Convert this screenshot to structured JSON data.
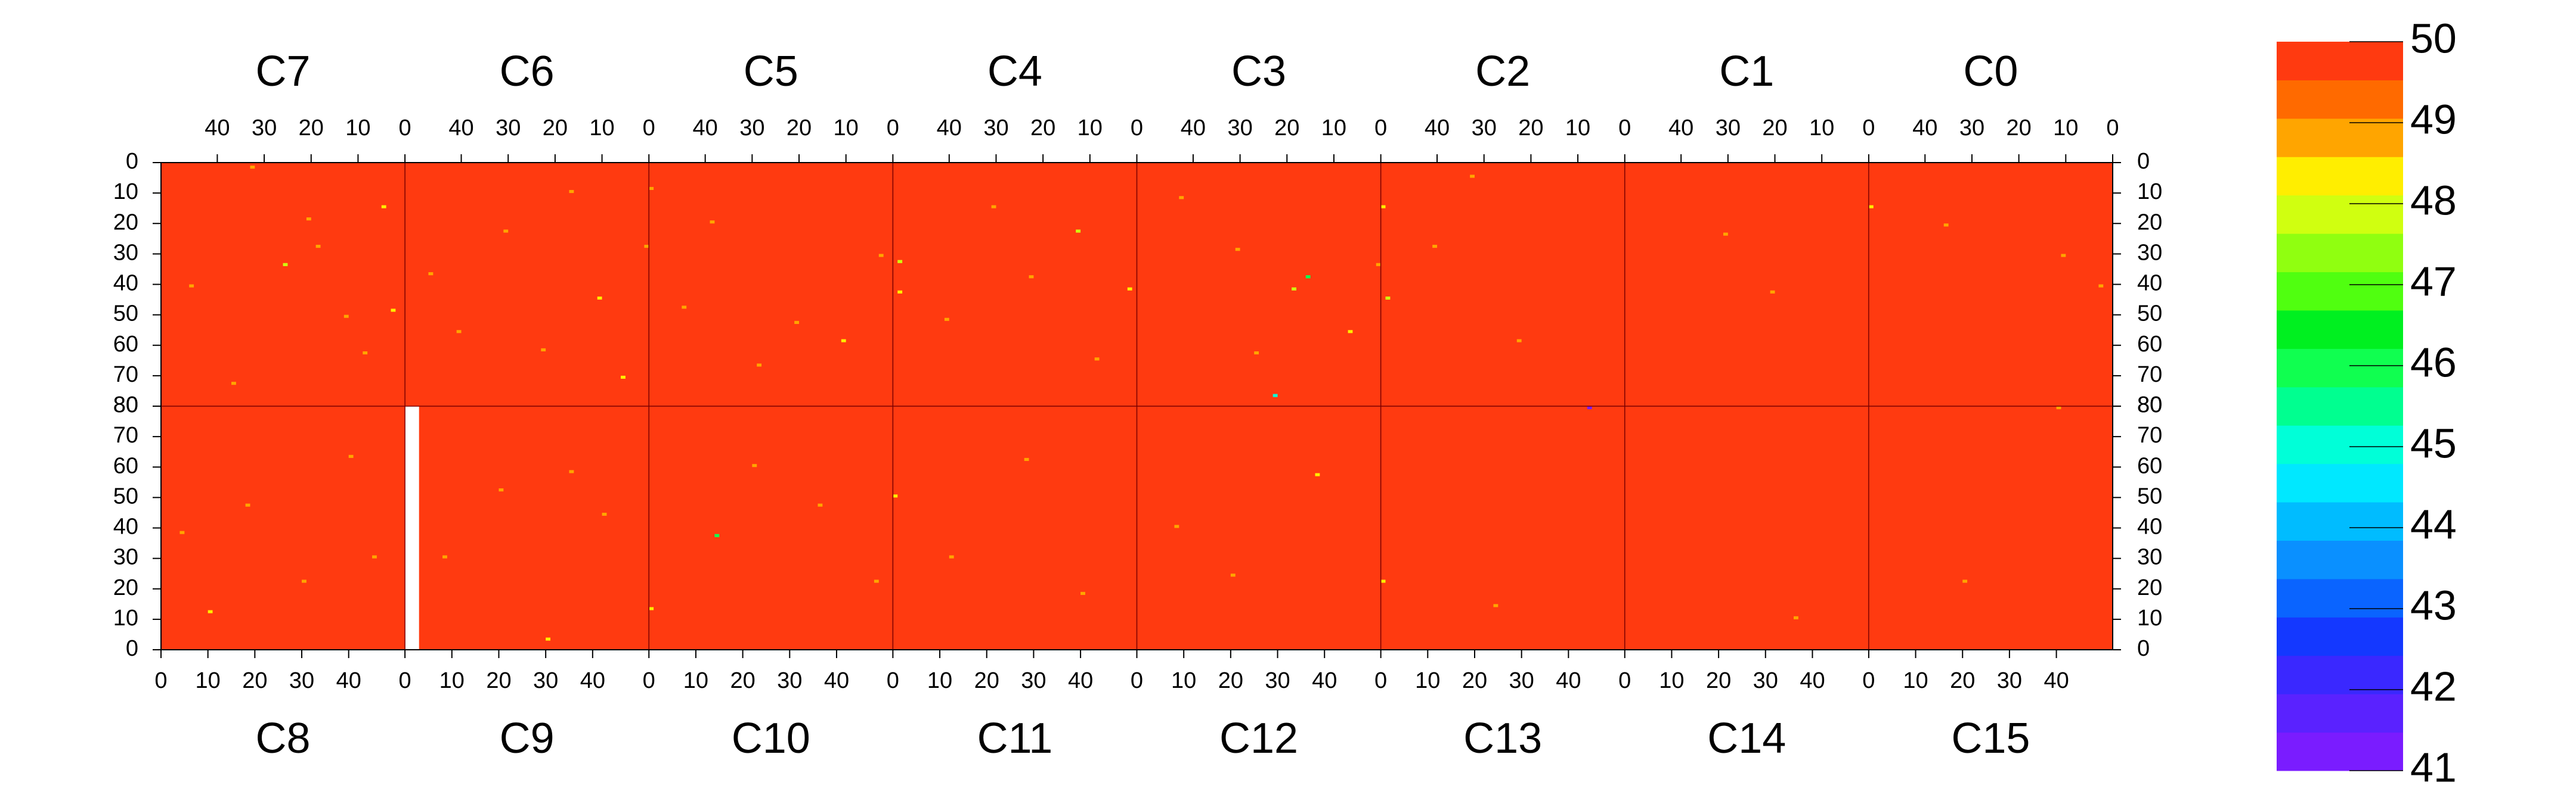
{
  "chart_data": {
    "type": "heatmap",
    "top_chips": [
      "C7",
      "C6",
      "C5",
      "C4",
      "C3",
      "C2",
      "C1",
      "C0"
    ],
    "bottom_chips": [
      "C8",
      "C9",
      "C10",
      "C11",
      "C12",
      "C13",
      "C14",
      "C15"
    ],
    "xlim": [
      0,
      52
    ],
    "xticks": [
      0,
      10,
      20,
      30,
      40
    ],
    "ylim": [
      0,
      80
    ],
    "yticks": [
      0,
      10,
      20,
      30,
      40,
      50,
      60,
      70,
      80
    ],
    "zlim": [
      41,
      50
    ],
    "zticks": [
      41,
      42,
      43,
      44,
      45,
      46,
      47,
      48,
      49,
      50
    ],
    "colors": [
      "#7a1cff",
      "#5a22ff",
      "#3a28ff",
      "#1438ff",
      "#0a64ff",
      "#0a90ff",
      "#00bcff",
      "#00e8ff",
      "#00ffd8",
      "#00ff90",
      "#10ff50",
      "#00f020",
      "#50ff10",
      "#90ff10",
      "#d0ff10",
      "#ffee00",
      "#ffa500",
      "#ff6a00",
      "#ff3a10"
    ],
    "background_value": 50,
    "masked": [
      {
        "chip": "C9",
        "cols": [
          0,
          2
        ],
        "rows": [
          0,
          80
        ]
      }
    ],
    "cells": [
      [
        "C7",
        32,
        1,
        49
      ],
      [
        "C7",
        20,
        18,
        49
      ],
      [
        "C7",
        4,
        14,
        48.5
      ],
      [
        "C7",
        12,
        50,
        49
      ],
      [
        "C7",
        45,
        40,
        49
      ],
      [
        "C7",
        25,
        33,
        48
      ],
      [
        "C7",
        8,
        62,
        49
      ],
      [
        "C7",
        36,
        72,
        49
      ],
      [
        "C7",
        2,
        48,
        48.5
      ],
      [
        "C7",
        18,
        27,
        49
      ],
      [
        "C6",
        0,
        27,
        49
      ],
      [
        "C6",
        30,
        22,
        49
      ],
      [
        "C6",
        10,
        44,
        48.5
      ],
      [
        "C6",
        40,
        55,
        49
      ],
      [
        "C6",
        22,
        61,
        49
      ],
      [
        "C6",
        16,
        9,
        49
      ],
      [
        "C6",
        46,
        36,
        49
      ],
      [
        "C6",
        5,
        70,
        48.5
      ],
      [
        "C5",
        51,
        8,
        49
      ],
      [
        "C5",
        38,
        19,
        49
      ],
      [
        "C5",
        20,
        52,
        49
      ],
      [
        "C5",
        10,
        58,
        48.5
      ],
      [
        "C5",
        28,
        66,
        49
      ],
      [
        "C5",
        44,
        47,
        49
      ],
      [
        "C5",
        2,
        30,
        49
      ],
      [
        "C4",
        50,
        32,
        48
      ],
      [
        "C4",
        50,
        42,
        48.5
      ],
      [
        "C4",
        30,
        14,
        49
      ],
      [
        "C4",
        12,
        22,
        48
      ],
      [
        "C4",
        40,
        51,
        49
      ],
      [
        "C4",
        22,
        37,
        49
      ],
      [
        "C4",
        1,
        41,
        48.5
      ],
      [
        "C4",
        8,
        64,
        49
      ],
      [
        "C3",
        15,
        37,
        46
      ],
      [
        "C3",
        22,
        76,
        45
      ],
      [
        "C3",
        18,
        41,
        48
      ],
      [
        "C3",
        0,
        33,
        49
      ],
      [
        "C3",
        30,
        28,
        49
      ],
      [
        "C3",
        6,
        55,
        48.5
      ],
      [
        "C3",
        42,
        11,
        49
      ],
      [
        "C3",
        26,
        62,
        49
      ],
      [
        "C2",
        51,
        14,
        48.5
      ],
      [
        "C2",
        50,
        44,
        48
      ],
      [
        "C2",
        40,
        27,
        49
      ],
      [
        "C2",
        22,
        58,
        49
      ],
      [
        "C2",
        32,
        4,
        49
      ],
      [
        "C1",
        30,
        23,
        49
      ],
      [
        "C1",
        20,
        42,
        49
      ],
      [
        "C0",
        51,
        14,
        48.5
      ],
      [
        "C0",
        10,
        30,
        49
      ],
      [
        "C0",
        35,
        20,
        49
      ],
      [
        "C0",
        2,
        40,
        49
      ],
      [
        "C8",
        4,
        38,
        49
      ],
      [
        "C8",
        18,
        47,
        49
      ],
      [
        "C8",
        30,
        22,
        49
      ],
      [
        "C8",
        40,
        63,
        49
      ],
      [
        "C8",
        10,
        12,
        48.5
      ],
      [
        "C8",
        45,
        30,
        49
      ],
      [
        "C9",
        8,
        30,
        49
      ],
      [
        "C9",
        20,
        52,
        49
      ],
      [
        "C9",
        30,
        3,
        48.5
      ],
      [
        "C9",
        42,
        44,
        49
      ],
      [
        "C9",
        35,
        58,
        49
      ],
      [
        "C10",
        0,
        13,
        48.5
      ],
      [
        "C10",
        14,
        37,
        46
      ],
      [
        "C10",
        22,
        60,
        49
      ],
      [
        "C10",
        36,
        47,
        49
      ],
      [
        "C10",
        48,
        22,
        49
      ],
      [
        "C11",
        0,
        50,
        48.5
      ],
      [
        "C11",
        12,
        30,
        49
      ],
      [
        "C11",
        28,
        62,
        49
      ],
      [
        "C11",
        40,
        18,
        49
      ],
      [
        "C12",
        20,
        24,
        49
      ],
      [
        "C12",
        38,
        57,
        48.5
      ],
      [
        "C12",
        8,
        40,
        49
      ],
      [
        "C13",
        0,
        22,
        48.5
      ],
      [
        "C13",
        24,
        14,
        49
      ],
      [
        "C13",
        44,
        79,
        41
      ],
      [
        "C14",
        36,
        10,
        49
      ],
      [
        "C15",
        20,
        22,
        49
      ],
      [
        "C15",
        40,
        79,
        49
      ]
    ]
  }
}
